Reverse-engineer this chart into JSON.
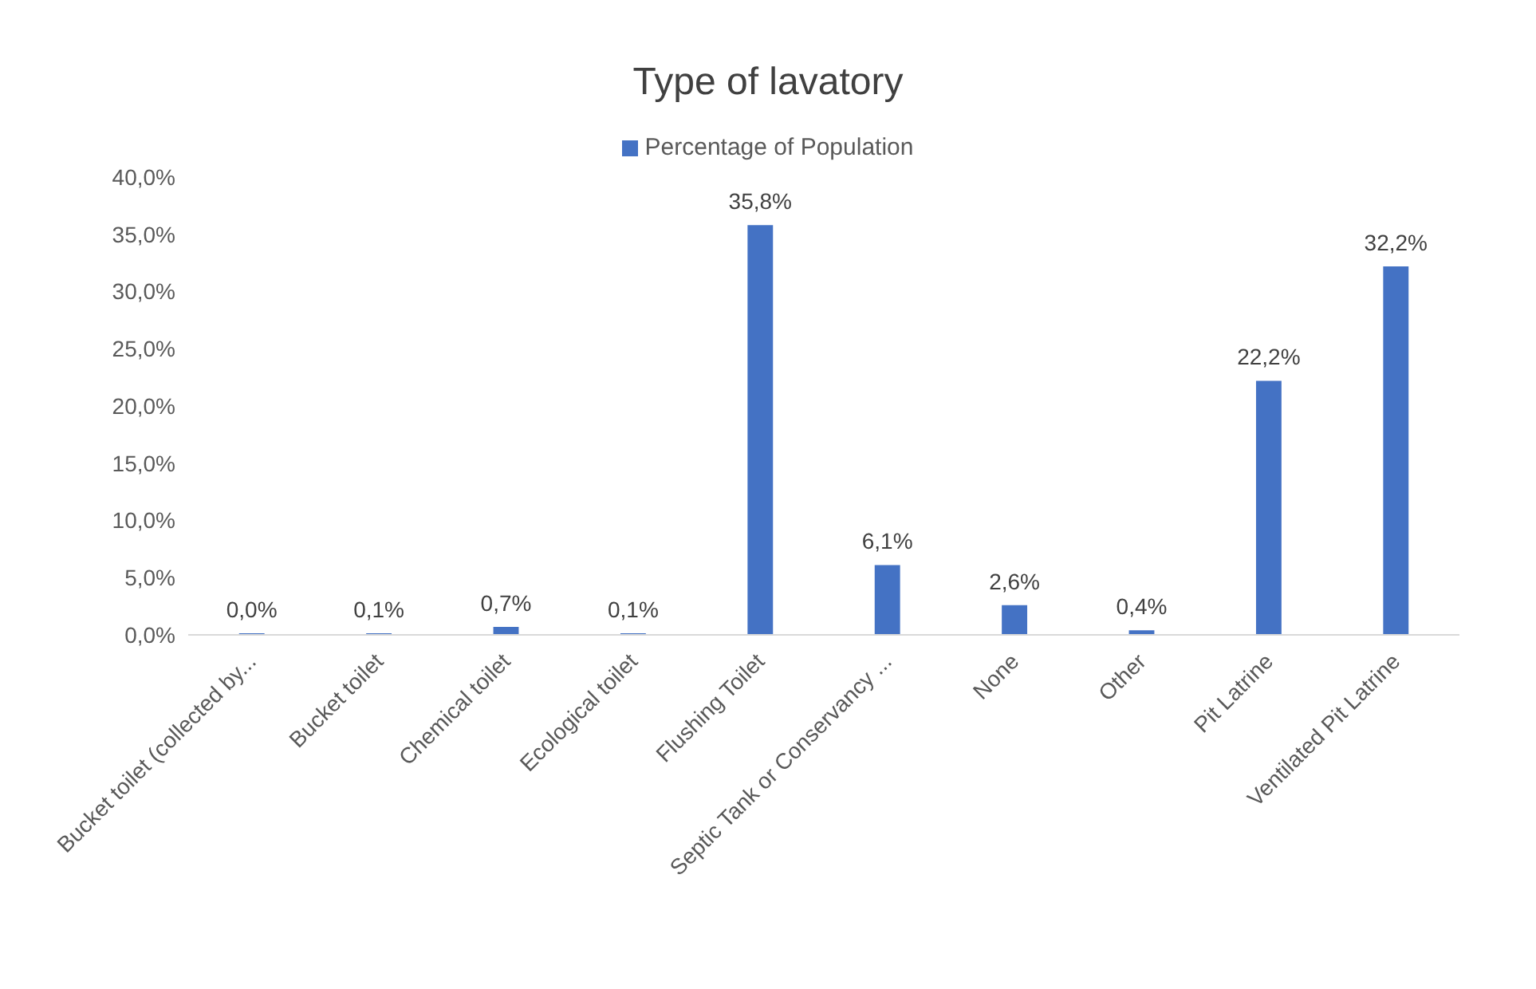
{
  "chart_data": {
    "type": "bar",
    "title": "Type of lavatory",
    "categories": [
      "Bucket toilet (collected by...",
      "Bucket toilet",
      "Chemical toilet",
      "Ecological toilet",
      "Flushing Toilet",
      "Septic Tank or Conservancy ...",
      "None",
      "Other",
      "Pit Latrine",
      "Ventilated Pit Latrine"
    ],
    "series": [
      {
        "name": "Percentage of Population",
        "color": "#4472c4",
        "values": [
          0.0,
          0.1,
          0.7,
          0.1,
          35.8,
          6.1,
          2.6,
          0.4,
          22.2,
          32.2
        ],
        "value_labels": [
          "0,0%",
          "0,1%",
          "0,7%",
          "0,1%",
          "35,8%",
          "6,1%",
          "2,6%",
          "0,4%",
          "22,2%",
          "32,2%"
        ]
      }
    ],
    "ylim": [
      0,
      40
    ],
    "yticks": [
      {
        "value": 0,
        "label": "0,0%"
      },
      {
        "value": 5,
        "label": "5,0%"
      },
      {
        "value": 10,
        "label": "10,0%"
      },
      {
        "value": 15,
        "label": "15,0%"
      },
      {
        "value": 20,
        "label": "20,0%"
      },
      {
        "value": 25,
        "label": "25,0%"
      },
      {
        "value": 30,
        "label": "30,0%"
      },
      {
        "value": 35,
        "label": "35,0%"
      },
      {
        "value": 40,
        "label": "40,0%"
      }
    ],
    "grid": false,
    "legend": "top"
  }
}
